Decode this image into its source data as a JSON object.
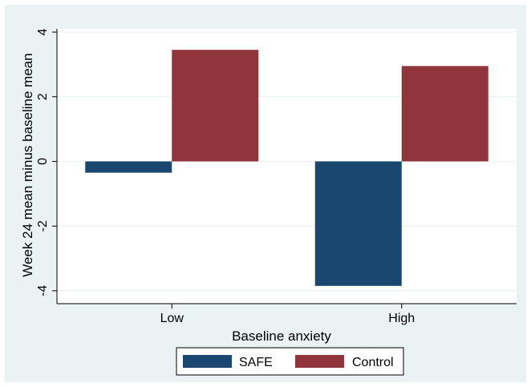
{
  "chart_data": {
    "type": "bar",
    "title": "",
    "xlabel": "Baseline anxiety",
    "ylabel": "Week 24 mean minus baseline mean",
    "categories": [
      "Low",
      "High"
    ],
    "series": [
      {
        "name": "SAFE",
        "color": "#1a476f",
        "values": [
          -0.35,
          -3.85
        ]
      },
      {
        "name": "Control",
        "color": "#90353b",
        "values": [
          3.45,
          2.95
        ]
      }
    ],
    "ylim": [
      -4.4,
      4.1
    ],
    "yticks": [
      -4,
      -2,
      0,
      2,
      4
    ],
    "ytick_labels": [
      "-4",
      "-2",
      "0",
      "2",
      "4"
    ],
    "grid": "horizontal",
    "legend": "bottom"
  }
}
